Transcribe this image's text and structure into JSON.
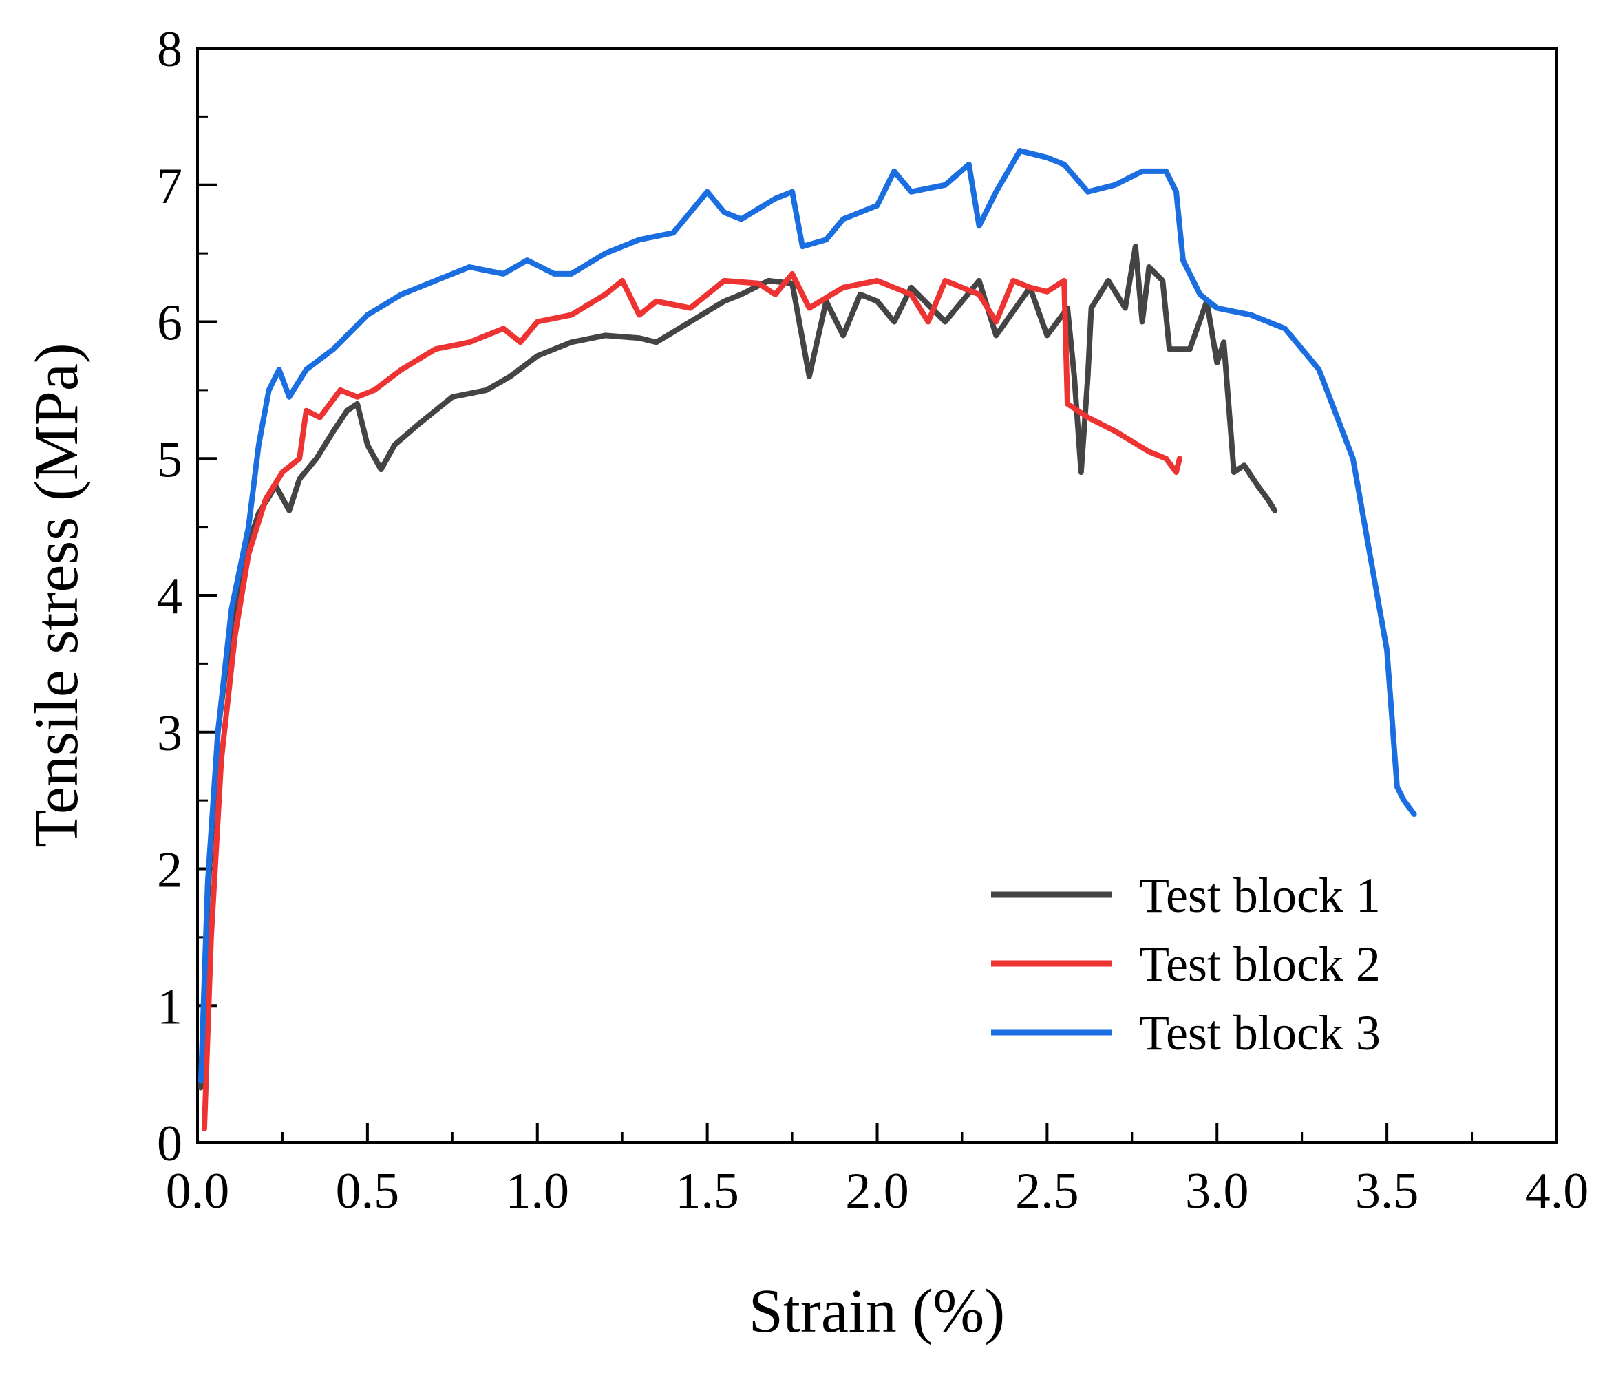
{
  "chart_data": {
    "type": "line",
    "title": "",
    "xlabel": "Strain (%)",
    "ylabel": "Tensile stress (MPa)",
    "xlim": [
      0.0,
      4.0
    ],
    "ylim": [
      0,
      8
    ],
    "xticks": [
      0.0,
      0.5,
      1.0,
      1.5,
      2.0,
      2.5,
      3.0,
      3.5,
      4.0
    ],
    "xtick_labels": [
      "0.0",
      "0.5",
      "1.0",
      "1.5",
      "2.0",
      "2.5",
      "3.0",
      "3.5",
      "4.0"
    ],
    "yticks": [
      0,
      1,
      2,
      3,
      4,
      5,
      6,
      7,
      8
    ],
    "ytick_labels": [
      "0",
      "1",
      "2",
      "3",
      "4",
      "5",
      "6",
      "7",
      "8"
    ],
    "grid": false,
    "legend_position": "bottom-right",
    "series": [
      {
        "name": "Test block 1",
        "color": "#444444",
        "points": [
          [
            0.01,
            0.4
          ],
          [
            0.03,
            1.8
          ],
          [
            0.06,
            3.0
          ],
          [
            0.1,
            3.8
          ],
          [
            0.14,
            4.3
          ],
          [
            0.18,
            4.6
          ],
          [
            0.23,
            4.8
          ],
          [
            0.27,
            4.62
          ],
          [
            0.3,
            4.85
          ],
          [
            0.35,
            5.0
          ],
          [
            0.4,
            5.2
          ],
          [
            0.44,
            5.35
          ],
          [
            0.47,
            5.4
          ],
          [
            0.5,
            5.1
          ],
          [
            0.54,
            4.92
          ],
          [
            0.58,
            5.1
          ],
          [
            0.65,
            5.25
          ],
          [
            0.75,
            5.45
          ],
          [
            0.85,
            5.5
          ],
          [
            0.92,
            5.6
          ],
          [
            1.0,
            5.75
          ],
          [
            1.1,
            5.85
          ],
          [
            1.2,
            5.9
          ],
          [
            1.3,
            5.88
          ],
          [
            1.35,
            5.85
          ],
          [
            1.45,
            6.0
          ],
          [
            1.55,
            6.15
          ],
          [
            1.6,
            6.2
          ],
          [
            1.68,
            6.3
          ],
          [
            1.75,
            6.28
          ],
          [
            1.8,
            5.6
          ],
          [
            1.85,
            6.15
          ],
          [
            1.9,
            5.9
          ],
          [
            1.95,
            6.2
          ],
          [
            2.0,
            6.15
          ],
          [
            2.05,
            6.0
          ],
          [
            2.1,
            6.25
          ],
          [
            2.2,
            6.0
          ],
          [
            2.3,
            6.3
          ],
          [
            2.35,
            5.9
          ],
          [
            2.45,
            6.25
          ],
          [
            2.5,
            5.9
          ],
          [
            2.56,
            6.1
          ],
          [
            2.58,
            5.6
          ],
          [
            2.6,
            4.9
          ],
          [
            2.62,
            5.6
          ],
          [
            2.63,
            6.1
          ],
          [
            2.68,
            6.3
          ],
          [
            2.73,
            6.1
          ],
          [
            2.76,
            6.55
          ],
          [
            2.78,
            6.0
          ],
          [
            2.8,
            6.4
          ],
          [
            2.84,
            6.3
          ],
          [
            2.86,
            5.8
          ],
          [
            2.92,
            5.8
          ],
          [
            2.97,
            6.15
          ],
          [
            3.0,
            5.7
          ],
          [
            3.02,
            5.85
          ],
          [
            3.05,
            4.9
          ],
          [
            3.08,
            4.95
          ],
          [
            3.12,
            4.8
          ],
          [
            3.15,
            4.7
          ],
          [
            3.17,
            4.62
          ]
        ]
      },
      {
        "name": "Test block 2",
        "color": "#ee3333",
        "points": [
          [
            0.02,
            0.1
          ],
          [
            0.04,
            1.5
          ],
          [
            0.07,
            2.8
          ],
          [
            0.11,
            3.7
          ],
          [
            0.15,
            4.3
          ],
          [
            0.2,
            4.7
          ],
          [
            0.25,
            4.9
          ],
          [
            0.3,
            5.0
          ],
          [
            0.32,
            5.35
          ],
          [
            0.36,
            5.3
          ],
          [
            0.42,
            5.5
          ],
          [
            0.47,
            5.45
          ],
          [
            0.52,
            5.5
          ],
          [
            0.6,
            5.65
          ],
          [
            0.7,
            5.8
          ],
          [
            0.8,
            5.85
          ],
          [
            0.9,
            5.95
          ],
          [
            0.95,
            5.85
          ],
          [
            1.0,
            6.0
          ],
          [
            1.1,
            6.05
          ],
          [
            1.2,
            6.2
          ],
          [
            1.25,
            6.3
          ],
          [
            1.3,
            6.05
          ],
          [
            1.35,
            6.15
          ],
          [
            1.45,
            6.1
          ],
          [
            1.55,
            6.3
          ],
          [
            1.65,
            6.28
          ],
          [
            1.7,
            6.2
          ],
          [
            1.75,
            6.35
          ],
          [
            1.8,
            6.1
          ],
          [
            1.9,
            6.25
          ],
          [
            2.0,
            6.3
          ],
          [
            2.1,
            6.2
          ],
          [
            2.15,
            6.0
          ],
          [
            2.2,
            6.3
          ],
          [
            2.3,
            6.2
          ],
          [
            2.35,
            6.0
          ],
          [
            2.4,
            6.3
          ],
          [
            2.45,
            6.25
          ],
          [
            2.5,
            6.22
          ],
          [
            2.55,
            6.3
          ],
          [
            2.56,
            5.4
          ],
          [
            2.62,
            5.3
          ],
          [
            2.7,
            5.2
          ],
          [
            2.8,
            5.05
          ],
          [
            2.85,
            5.0
          ],
          [
            2.88,
            4.9
          ],
          [
            2.89,
            5.0
          ]
        ]
      },
      {
        "name": "Test block 3",
        "color": "#1a6ee0",
        "points": [
          [
            0.01,
            0.45
          ],
          [
            0.03,
            1.9
          ],
          [
            0.06,
            3.0
          ],
          [
            0.1,
            3.9
          ],
          [
            0.15,
            4.5
          ],
          [
            0.18,
            5.1
          ],
          [
            0.21,
            5.5
          ],
          [
            0.24,
            5.65
          ],
          [
            0.27,
            5.45
          ],
          [
            0.32,
            5.65
          ],
          [
            0.4,
            5.8
          ],
          [
            0.5,
            6.05
          ],
          [
            0.6,
            6.2
          ],
          [
            0.7,
            6.3
          ],
          [
            0.8,
            6.4
          ],
          [
            0.9,
            6.35
          ],
          [
            0.97,
            6.45
          ],
          [
            1.05,
            6.35
          ],
          [
            1.1,
            6.35
          ],
          [
            1.2,
            6.5
          ],
          [
            1.3,
            6.6
          ],
          [
            1.4,
            6.65
          ],
          [
            1.5,
            6.95
          ],
          [
            1.55,
            6.8
          ],
          [
            1.6,
            6.75
          ],
          [
            1.7,
            6.9
          ],
          [
            1.75,
            6.95
          ],
          [
            1.78,
            6.55
          ],
          [
            1.85,
            6.6
          ],
          [
            1.9,
            6.75
          ],
          [
            2.0,
            6.85
          ],
          [
            2.05,
            7.1
          ],
          [
            2.1,
            6.95
          ],
          [
            2.2,
            7.0
          ],
          [
            2.27,
            7.15
          ],
          [
            2.3,
            6.7
          ],
          [
            2.35,
            6.95
          ],
          [
            2.42,
            7.25
          ],
          [
            2.5,
            7.2
          ],
          [
            2.55,
            7.15
          ],
          [
            2.62,
            6.95
          ],
          [
            2.7,
            7.0
          ],
          [
            2.78,
            7.1
          ],
          [
            2.85,
            7.1
          ],
          [
            2.88,
            6.95
          ],
          [
            2.9,
            6.45
          ],
          [
            2.95,
            6.2
          ],
          [
            3.0,
            6.1
          ],
          [
            3.1,
            6.05
          ],
          [
            3.2,
            5.95
          ],
          [
            3.3,
            5.65
          ],
          [
            3.4,
            5.0
          ],
          [
            3.45,
            4.3
          ],
          [
            3.5,
            3.6
          ],
          [
            3.53,
            2.6
          ],
          [
            3.55,
            2.5
          ],
          [
            3.58,
            2.4
          ]
        ]
      }
    ]
  }
}
